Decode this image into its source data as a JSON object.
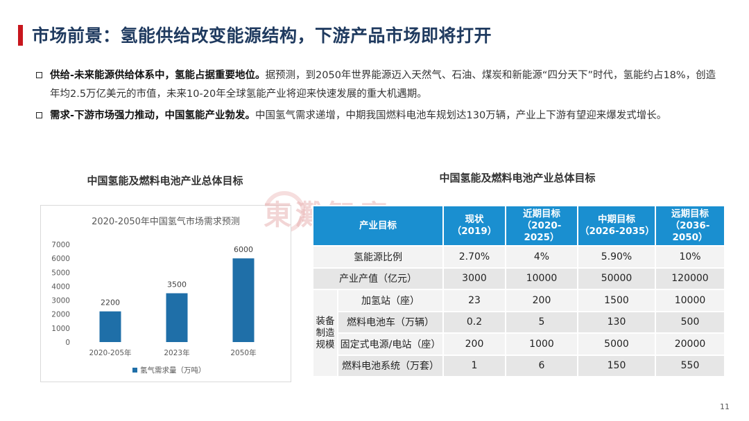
{
  "header": {
    "title": "市场前景：氢能供给改变能源结构，下游产品市场即将打开"
  },
  "bullets": [
    {
      "bold": "供给-未来能源供给体系中，氢能占据重要地位。",
      "text": "据预测，到2050年世界能源迈入天然气、石油、煤炭和新能源“四分天下”时代，氢能约占18%，创造年均2.5万亿美元的市值，未来10-20年全球氢能产业将迎来快速发展的重大机遇期。"
    },
    {
      "bold": "需求-下游市场强力推动，中国氢能产业勃发。",
      "text": "中国氢气需求递增，中期我国燃料电池车规划达130万辆，产业上下游有望迎来爆发式增长。"
    }
  ],
  "chart_caption": "中国氢能及燃料电池产业总体目标",
  "table_caption": "中国氢能及燃料电池产业总体目标",
  "watermark": "東灘智庫",
  "chart_data": {
    "type": "bar",
    "title": "2020-2050年中国氢气市场需求预测",
    "categories": [
      "2020-205年",
      "2023年",
      "2050年"
    ],
    "series": [
      {
        "name": "氢气需求量（万吨）",
        "values": [
          2200,
          3500,
          6000
        ],
        "color": "#1f6fa8"
      }
    ],
    "yticks": [
      "0",
      "1000",
      "2000",
      "3000",
      "4000",
      "5000",
      "6000",
      "7000"
    ],
    "ylim": [
      0,
      7000
    ],
    "grid": false,
    "legend": "bottom"
  },
  "table": {
    "headers": [
      "产业目标",
      "现状\n（2019）",
      "近期目标\n（2020-\n2025）",
      "中期目标\n（2026-2035）",
      "远期目标\n（2036-2050）"
    ],
    "rows": [
      {
        "label": "氢能源比例",
        "values": [
          "2.70%",
          "4%",
          "5.90%",
          "10%"
        ]
      },
      {
        "label": "产业产值（亿元）",
        "values": [
          "3000",
          "10000",
          "50000",
          "120000"
        ]
      }
    ],
    "group_label": "装备\n制造\n规模",
    "group_rows": [
      {
        "label": "加氢站（座）",
        "values": [
          "23",
          "200",
          "1500",
          "10000"
        ]
      },
      {
        "label": "燃料电池车（万辆）",
        "values": [
          "0.2",
          "5",
          "130",
          "500"
        ]
      },
      {
        "label": "固定式电源/电站（座）",
        "values": [
          "200",
          "1000",
          "5000",
          "20000"
        ]
      },
      {
        "label": "燃料电池系统（万套）",
        "values": [
          "1",
          "6",
          "150",
          "550"
        ]
      }
    ]
  },
  "page_number": "11"
}
